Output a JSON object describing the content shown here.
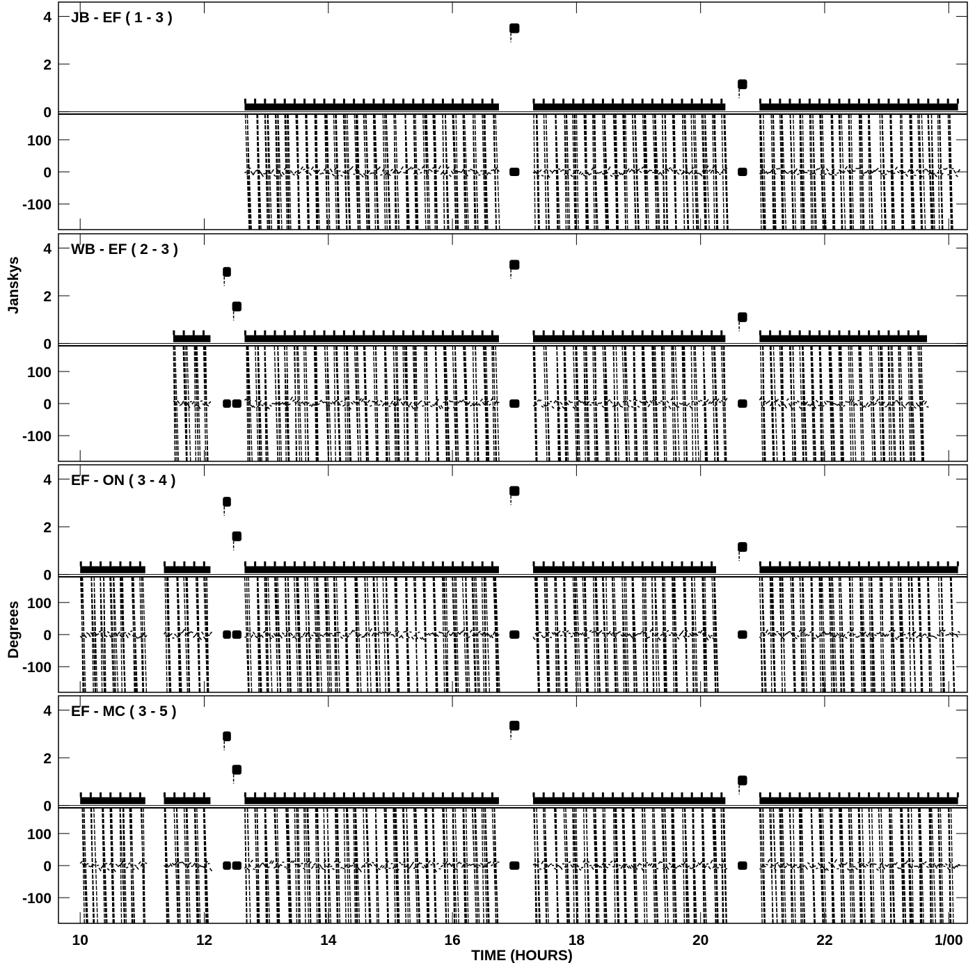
{
  "chart_data": {
    "type": "line",
    "x_axis": {
      "label": "TIME (HOURS)",
      "range": [
        9.65,
        24.3
      ],
      "ticks": [
        {
          "value": 10,
          "label": "10"
        },
        {
          "value": 12,
          "label": "12"
        },
        {
          "value": 14,
          "label": "14"
        },
        {
          "value": 16,
          "label": "16"
        },
        {
          "value": 18,
          "label": "18"
        },
        {
          "value": 20,
          "label": "20"
        },
        {
          "value": 22,
          "label": "22"
        },
        {
          "value": 24,
          "label": "1/00"
        }
      ]
    },
    "y_axis_labels": {
      "amplitude": "Janskys",
      "phase": "Degrees"
    },
    "amplitude_axis": {
      "unit": "Jy",
      "range": [
        -0.1,
        4.6
      ],
      "ticks": [
        0,
        2,
        4
      ]
    },
    "phase_axis": {
      "unit": "deg",
      "range": [
        -180,
        180
      ],
      "ticks": [
        -100,
        0,
        100
      ]
    },
    "baselines": [
      {
        "title": "JB - EF ( 1 - 3 )",
        "target_amplitude": 0.2,
        "target_segments": [
          [
            12.65,
            16.75
          ],
          [
            17.3,
            20.4
          ],
          [
            20.95,
            24.15
          ]
        ],
        "calibrators": [
          {
            "time_range": [
              16.92,
              17.08
            ],
            "amplitude": 3.5,
            "phase": 0
          },
          {
            "time_range": [
              20.6,
              20.75
            ],
            "amplitude": 1.15,
            "phase": 0
          }
        ]
      },
      {
        "title": "WB - EF ( 2 - 3 )",
        "target_amplitude": 0.2,
        "target_segments": [
          [
            11.5,
            12.1
          ],
          [
            12.65,
            16.75
          ],
          [
            17.3,
            20.4
          ],
          [
            20.95,
            23.65
          ]
        ],
        "calibrators": [
          {
            "time_range": [
              12.3,
              12.43
            ],
            "amplitude": 3.0,
            "phase": 0
          },
          {
            "time_range": [
              12.45,
              12.6
            ],
            "amplitude": 1.55,
            "phase": 0
          },
          {
            "time_range": [
              16.92,
              17.08
            ],
            "amplitude": 3.3,
            "phase": 0
          },
          {
            "time_range": [
              20.6,
              20.75
            ],
            "amplitude": 1.1,
            "phase": 0
          }
        ]
      },
      {
        "title": "EF - ON ( 3 - 4 )",
        "target_amplitude": 0.2,
        "target_segments": [
          [
            10.0,
            11.05
          ],
          [
            11.35,
            12.1
          ],
          [
            12.65,
            16.75
          ],
          [
            17.3,
            20.25
          ],
          [
            20.95,
            24.15
          ]
        ],
        "calibrators": [
          {
            "time_range": [
              12.3,
              12.43
            ],
            "amplitude": 3.05,
            "phase": 0
          },
          {
            "time_range": [
              12.45,
              12.6
            ],
            "amplitude": 1.6,
            "phase": 0
          },
          {
            "time_range": [
              16.92,
              17.08
            ],
            "amplitude": 3.5,
            "phase": 0
          },
          {
            "time_range": [
              20.6,
              20.75
            ],
            "amplitude": 1.15,
            "phase": 0
          }
        ]
      },
      {
        "title": "EF - MC ( 3 - 5 )",
        "target_amplitude": 0.2,
        "target_segments": [
          [
            10.0,
            11.05
          ],
          [
            11.35,
            12.1
          ],
          [
            12.65,
            16.75
          ],
          [
            17.3,
            20.4
          ],
          [
            20.95,
            24.15
          ]
        ],
        "calibrators": [
          {
            "time_range": [
              12.3,
              12.43
            ],
            "amplitude": 2.9,
            "phase": 0
          },
          {
            "time_range": [
              12.45,
              12.6
            ],
            "amplitude": 1.5,
            "phase": 0
          },
          {
            "time_range": [
              16.92,
              17.08
            ],
            "amplitude": 3.35,
            "phase": 0
          },
          {
            "time_range": [
              20.6,
              20.75
            ],
            "amplitude": 1.05,
            "phase": 0
          }
        ]
      }
    ]
  }
}
